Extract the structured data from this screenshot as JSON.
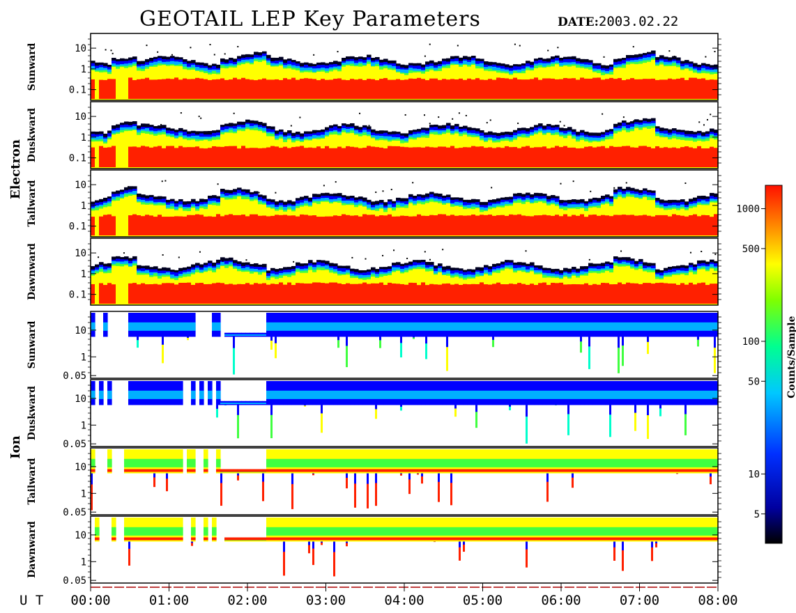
{
  "header": {
    "title": "GEOTAIL LEP Key Parameters",
    "date_label": "DATE:",
    "date_value": "2003.02.22"
  },
  "chart_data": {
    "type": "heatmap",
    "title": "GEOTAIL LEP Key Parameters",
    "groups": [
      {
        "name": "Electron",
        "panels": [
          "Sunward",
          "Duskward",
          "Tailward",
          "Dawnward"
        ]
      },
      {
        "name": "Ion",
        "panels": [
          "Sunward",
          "Duskward",
          "Tailward",
          "Dawnward"
        ]
      }
    ],
    "electron_yticks": [
      "10",
      "1",
      "0.1"
    ],
    "ion_yticks": [
      "10",
      "1",
      "0.05"
    ],
    "x_axis_label": "U T",
    "x_ticks": [
      "00:00",
      "01:00",
      "02:00",
      "03:00",
      "04:00",
      "05:00",
      "06:00",
      "07:00",
      "08:00"
    ],
    "xlim_hours": [
      0,
      8
    ],
    "colorbar": {
      "title": "Counts/Sample",
      "ticks": [
        "1000",
        "500",
        "100",
        "50",
        "10",
        "5"
      ],
      "tick_values": [
        1000,
        500,
        100,
        50,
        10,
        5
      ],
      "range": [
        3,
        1500
      ],
      "scale": "log"
    },
    "colormap": [
      "#000020",
      "#0000ff",
      "#00b0ff",
      "#00ffcc",
      "#40ff40",
      "#ffff00",
      "#ff8000",
      "#ff2000"
    ]
  }
}
